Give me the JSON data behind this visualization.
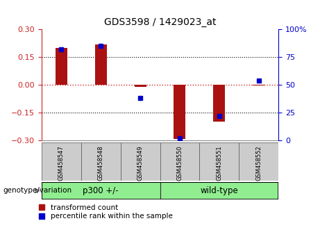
{
  "title": "GDS3598 / 1429023_at",
  "categories": [
    "GSM458547",
    "GSM458548",
    "GSM458549",
    "GSM458550",
    "GSM458551",
    "GSM458552"
  ],
  "red_values": [
    0.2,
    0.22,
    -0.01,
    -0.295,
    -0.2,
    -0.005
  ],
  "blue_values_pct": [
    82,
    85,
    38,
    2,
    22,
    54
  ],
  "ylim_left": [
    -0.3,
    0.3
  ],
  "ylim_right": [
    0,
    100
  ],
  "yticks_left": [
    -0.3,
    -0.15,
    0,
    0.15,
    0.3
  ],
  "yticks_right": [
    0,
    25,
    50,
    75,
    100
  ],
  "bar_color": "#AA1111",
  "dot_color": "#0000CC",
  "zero_line_color": "#CC2222",
  "grid_color": "#000000",
  "group1_label": "p300 +/-",
  "group2_label": "wild-type",
  "group_color": "#90EE90",
  "group1_indices": [
    0,
    1,
    2
  ],
  "group2_indices": [
    3,
    4,
    5
  ],
  "legend_red": "transformed count",
  "legend_blue": "percentile rank within the sample",
  "genotype_label": "genotype/variation",
  "left_tick_color": "#CC2222",
  "right_tick_color": "#0000CC",
  "xtick_bg": "#CCCCCC",
  "right_ytick_labels": [
    "0",
    "25",
    "50",
    "75",
    "100%"
  ]
}
